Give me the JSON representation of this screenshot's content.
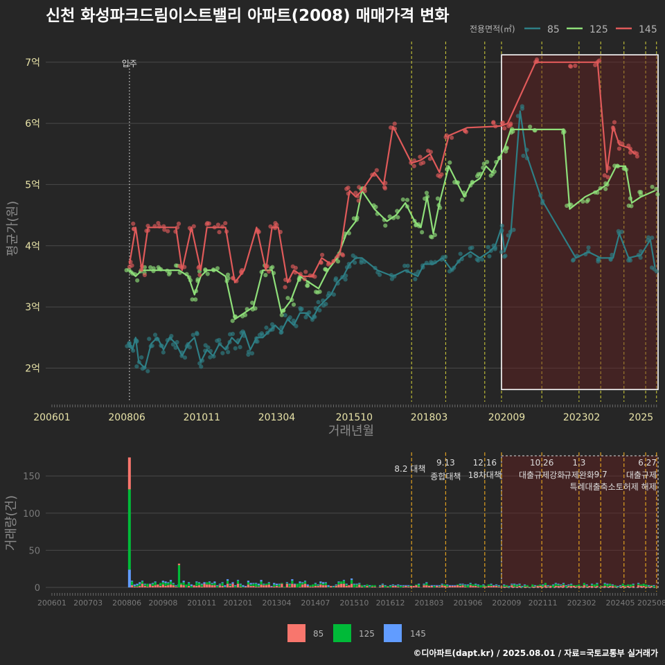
{
  "title": "신천 화성파크드림이스트밸리 아파트(2008) 매매가격 변화",
  "legend": {
    "title": "전용면적(㎡)",
    "items": [
      {
        "label": "85",
        "color": "#2e7f86"
      },
      {
        "label": "125",
        "color": "#8fe07a"
      },
      {
        "label": "145",
        "color": "#e05a5a"
      }
    ]
  },
  "bottom_legend": [
    {
      "label": "85",
      "color": "#f8766d"
    },
    {
      "label": "125",
      "color": "#00ba38"
    },
    {
      "label": "145",
      "color": "#619cff"
    }
  ],
  "credit": "©디아파트(dapt.kr) / 2025.08.01 / 자료=국토교통부 실거래가",
  "chart_data": [
    {
      "type": "line",
      "title": "신천 화성파크드림이스트밸리 아파트(2008) 매매가격 변화",
      "xlabel": "거래년월",
      "ylabel": "평균가(원)",
      "xticks": [
        "200601",
        "200806",
        "201011",
        "201304",
        "201510",
        "201803",
        "202009",
        "202302",
        "2025"
      ],
      "yticks": [
        "2억",
        "3억",
        "4억",
        "5억",
        "6억",
        "7억"
      ],
      "ylim": [
        1.45,
        7.45
      ],
      "xlim": [
        2005.8,
        2025.55
      ],
      "annotations": [
        {
          "label": "입주",
          "x": 2008.5
        }
      ],
      "policy_lines": [
        2017.6,
        2018.7,
        2019.96,
        2020.5,
        2021.8,
        2023.0,
        2023.7,
        2024.45,
        2025.15,
        2025.5
      ],
      "highlight_box": {
        "x": [
          2020.5,
          2025.55
        ],
        "y": [
          1.65,
          7.12
        ]
      },
      "series": [
        {
          "name": "85",
          "color": "#2e7f86",
          "points": [
            [
              2008.5,
              2.4
            ],
            [
              2008.6,
              2.3
            ],
            [
              2008.7,
              2.5
            ],
            [
              2008.8,
              2.1
            ],
            [
              2009.0,
              2.0
            ],
            [
              2009.2,
              2.4
            ],
            [
              2009.4,
              2.5
            ],
            [
              2009.6,
              2.3
            ],
            [
              2009.8,
              2.5
            ],
            [
              2010.0,
              2.4
            ],
            [
              2010.2,
              2.2
            ],
            [
              2010.4,
              2.4
            ],
            [
              2010.6,
              2.5
            ],
            [
              2010.8,
              2.1
            ],
            [
              2011.0,
              2.3
            ],
            [
              2011.2,
              2.2
            ],
            [
              2011.4,
              2.4
            ],
            [
              2011.6,
              2.3
            ],
            [
              2011.8,
              2.5
            ],
            [
              2012.0,
              2.4
            ],
            [
              2012.2,
              2.6
            ],
            [
              2012.4,
              2.3
            ],
            [
              2012.6,
              2.5
            ],
            [
              2012.8,
              2.5
            ],
            [
              2013.0,
              2.6
            ],
            [
              2013.2,
              2.7
            ],
            [
              2013.4,
              2.6
            ],
            [
              2013.6,
              2.8
            ],
            [
              2013.8,
              2.7
            ],
            [
              2014.0,
              2.9
            ],
            [
              2014.2,
              2.9
            ],
            [
              2014.4,
              2.8
            ],
            [
              2014.6,
              3.0
            ],
            [
              2014.8,
              3.1
            ],
            [
              2015.0,
              3.2
            ],
            [
              2015.2,
              3.4
            ],
            [
              2015.4,
              3.5
            ],
            [
              2015.6,
              3.7
            ],
            [
              2015.8,
              3.8
            ],
            [
              2016.0,
              3.8
            ],
            [
              2016.5,
              3.6
            ],
            [
              2017.0,
              3.5
            ],
            [
              2017.4,
              3.6
            ],
            [
              2017.8,
              3.5
            ],
            [
              2018.0,
              3.7
            ],
            [
              2018.3,
              3.7
            ],
            [
              2018.6,
              3.8
            ],
            [
              2018.9,
              3.6
            ],
            [
              2019.2,
              3.8
            ],
            [
              2019.5,
              3.9
            ],
            [
              2019.8,
              3.8
            ],
            [
              2020.1,
              3.9
            ],
            [
              2020.3,
              4.0
            ],
            [
              2020.5,
              4.3
            ],
            [
              2020.6,
              3.9
            ],
            [
              2020.8,
              4.2
            ],
            [
              2021.1,
              6.2
            ],
            [
              2021.3,
              5.5
            ],
            [
              2021.8,
              4.75
            ],
            [
              2022.9,
              3.8
            ],
            [
              2023.3,
              3.9
            ],
            [
              2023.7,
              3.8
            ],
            [
              2024.1,
              3.8
            ],
            [
              2024.3,
              4.2
            ],
            [
              2024.6,
              3.8
            ],
            [
              2025.0,
              3.85
            ],
            [
              2025.3,
              4.1
            ],
            [
              2025.45,
              3.65
            ]
          ]
        },
        {
          "name": "125",
          "color": "#8fe07a",
          "points": [
            [
              2008.5,
              3.6
            ],
            [
              2008.7,
              3.5
            ],
            [
              2008.9,
              3.6
            ],
            [
              2009.2,
              3.6
            ],
            [
              2009.5,
              3.6
            ],
            [
              2009.8,
              3.6
            ],
            [
              2010.1,
              3.6
            ],
            [
              2010.4,
              3.5
            ],
            [
              2010.6,
              3.2
            ],
            [
              2010.8,
              3.5
            ],
            [
              2011.0,
              3.6
            ],
            [
              2011.3,
              3.6
            ],
            [
              2011.6,
              3.5
            ],
            [
              2011.9,
              2.8
            ],
            [
              2012.2,
              2.9
            ],
            [
              2012.5,
              3.0
            ],
            [
              2012.8,
              3.6
            ],
            [
              2013.1,
              3.6
            ],
            [
              2013.4,
              2.9
            ],
            [
              2013.7,
              3.1
            ],
            [
              2014.0,
              3.5
            ],
            [
              2014.3,
              3.4
            ],
            [
              2014.6,
              3.3
            ],
            [
              2014.9,
              3.6
            ],
            [
              2015.2,
              3.8
            ],
            [
              2015.5,
              4.2
            ],
            [
              2015.8,
              4.4
            ],
            [
              2016.0,
              4.9
            ],
            [
              2016.4,
              4.6
            ],
            [
              2016.8,
              4.4
            ],
            [
              2017.1,
              4.5
            ],
            [
              2017.4,
              4.7
            ],
            [
              2017.7,
              4.4
            ],
            [
              2017.9,
              4.3
            ],
            [
              2018.1,
              4.8
            ],
            [
              2018.3,
              4.2
            ],
            [
              2018.5,
              4.7
            ],
            [
              2018.8,
              5.3
            ],
            [
              2019.0,
              5.1
            ],
            [
              2019.3,
              4.8
            ],
            [
              2019.5,
              5.0
            ],
            [
              2019.8,
              5.1
            ],
            [
              2020.0,
              5.3
            ],
            [
              2020.2,
              5.2
            ],
            [
              2020.4,
              5.4
            ],
            [
              2020.6,
              5.6
            ],
            [
              2020.8,
              5.9
            ],
            [
              2021.5,
              5.9
            ],
            [
              2022.5,
              5.9
            ],
            [
              2022.7,
              4.6
            ],
            [
              2023.2,
              4.8
            ],
            [
              2023.6,
              4.9
            ],
            [
              2023.9,
              5.0
            ],
            [
              2024.2,
              5.3
            ],
            [
              2024.5,
              5.3
            ],
            [
              2024.7,
              4.7
            ],
            [
              2025.0,
              4.8
            ],
            [
              2025.45,
              4.9
            ]
          ]
        },
        {
          "name": "145",
          "color": "#e05a5a",
          "points": [
            [
              2008.5,
              3.7
            ],
            [
              2008.7,
              4.3
            ],
            [
              2008.9,
              3.6
            ],
            [
              2009.1,
              4.3
            ],
            [
              2009.4,
              4.3
            ],
            [
              2009.7,
              4.3
            ],
            [
              2010.0,
              4.3
            ],
            [
              2010.2,
              3.6
            ],
            [
              2010.5,
              4.3
            ],
            [
              2010.8,
              3.6
            ],
            [
              2011.0,
              4.3
            ],
            [
              2011.3,
              4.3
            ],
            [
              2011.6,
              4.3
            ],
            [
              2011.9,
              3.4
            ],
            [
              2012.2,
              3.6
            ],
            [
              2012.6,
              4.3
            ],
            [
              2012.9,
              3.6
            ],
            [
              2013.1,
              4.3
            ],
            [
              2013.3,
              4.3
            ],
            [
              2013.6,
              3.4
            ],
            [
              2013.8,
              3.6
            ],
            [
              2014.1,
              3.5
            ],
            [
              2014.4,
              3.5
            ],
            [
              2014.7,
              3.8
            ],
            [
              2015.0,
              3.7
            ],
            [
              2015.3,
              3.9
            ],
            [
              2015.6,
              4.9
            ],
            [
              2015.8,
              4.8
            ],
            [
              2016.0,
              4.9
            ],
            [
              2016.4,
              5.2
            ],
            [
              2016.7,
              5.0
            ],
            [
              2017.0,
              5.95
            ],
            [
              2017.6,
              5.35
            ],
            [
              2017.9,
              5.4
            ],
            [
              2018.2,
              5.5
            ],
            [
              2018.5,
              5.2
            ],
            [
              2018.8,
              5.8
            ],
            [
              2019.4,
              5.93
            ],
            [
              2020.3,
              5.95
            ],
            [
              2020.5,
              5.96
            ],
            [
              2020.7,
              6.0
            ],
            [
              2021.6,
              7.0
            ],
            [
              2022.8,
              7.0
            ],
            [
              2023.6,
              7.0
            ],
            [
              2023.9,
              5.2
            ],
            [
              2024.1,
              5.95
            ],
            [
              2024.3,
              5.65
            ],
            [
              2024.6,
              5.6
            ],
            [
              2024.8,
              5.5
            ]
          ]
        }
      ]
    },
    {
      "type": "bar",
      "title": "",
      "xlabel": "",
      "ylabel": "거래량(건)",
      "xticks": [
        "200601",
        "200703",
        "200806",
        "200908",
        "201011",
        "201201",
        "201304",
        "201407",
        "201510",
        "201612",
        "201803",
        "201906",
        "202009",
        "202111",
        "202302",
        "202405",
        "202508"
      ],
      "yticks": [
        "0",
        "50",
        "100",
        "150"
      ],
      "ylim": [
        0,
        180
      ],
      "policy_labels": [
        {
          "date": "8.2",
          "text": "8.2 대책"
        },
        {
          "date": "9.13",
          "text": "종합대책"
        },
        {
          "date": "12.16",
          "text": "18차대책"
        },
        {
          "date": "10.26",
          "text": "대출규제강화"
        },
        {
          "date": "1.3",
          "text": "규제완화"
        },
        {
          "date": "9.7",
          "text": "특례대출축소토허제 해제"
        },
        {
          "date": "6.27",
          "text": "대출규제"
        }
      ],
      "series": [
        {
          "name": "85",
          "color": "#f8766d",
          "spike": {
            "x": 2008.5,
            "value": 43
          }
        },
        {
          "name": "125",
          "color": "#00ba38",
          "spike": {
            "x": 2008.5,
            "value": 108
          }
        },
        {
          "name": "145",
          "color": "#619cff",
          "spike": {
            "x": 2008.5,
            "value": 24
          }
        }
      ]
    }
  ]
}
